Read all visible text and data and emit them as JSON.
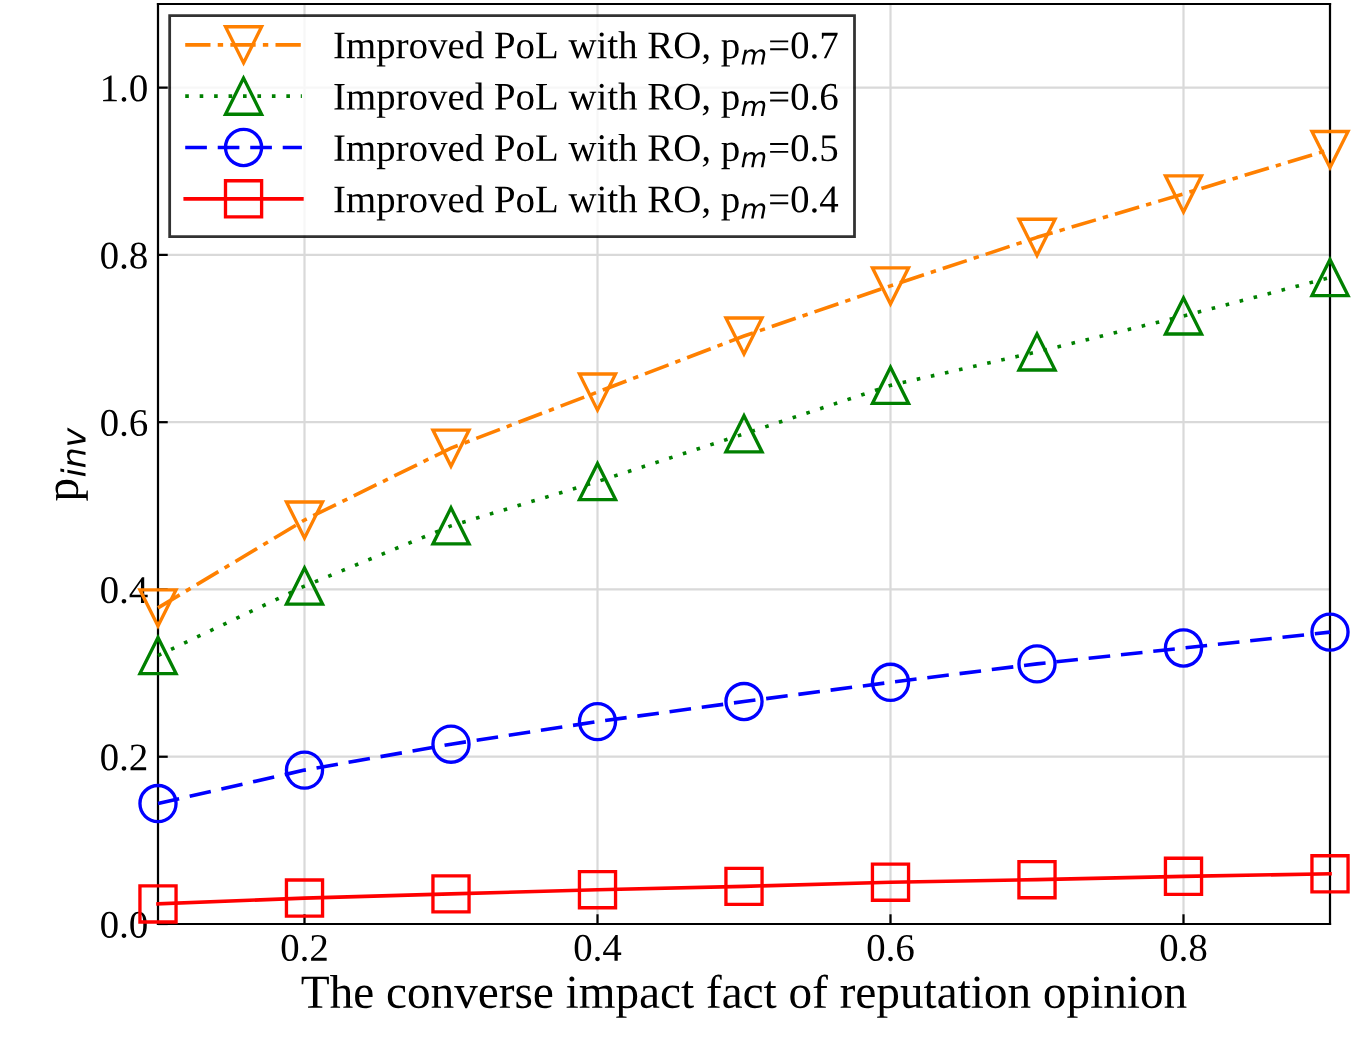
{
  "chart_data": {
    "type": "line",
    "xlabel": "The converse impact fact of reputation opinion",
    "ylabel": "p$_{inv}$",
    "x": [
      0.1,
      0.2,
      0.3,
      0.4,
      0.5,
      0.6,
      0.7,
      0.8,
      0.9
    ],
    "xlim": [
      0.1,
      0.9
    ],
    "xticks": [
      0.2,
      0.4,
      0.6,
      0.8
    ],
    "ylim": [
      0,
      1.1
    ],
    "yticks": [
      {
        "value": 0,
        "label": "0.0"
      },
      0.2,
      0.4,
      0.6,
      0.8,
      {
        "value": 1,
        "label": "1.0"
      }
    ],
    "grid": true,
    "legend": "top left",
    "series": [
      {
        "name": "Improved PoL with RO, p$_{m}$=0.7",
        "color": "#ff8000",
        "marker": "triangle_down",
        "line_style": "dashdot",
        "values": [
          0.378,
          0.483,
          0.569,
          0.636,
          0.703,
          0.763,
          0.821,
          0.873,
          0.926
        ]
      },
      {
        "name": "Improved PoL with RO, p$_{m}$=0.6",
        "color": "#008000",
        "marker": "triangle",
        "line_style": "dotted",
        "values": [
          0.321,
          0.404,
          0.476,
          0.529,
          0.586,
          0.644,
          0.684,
          0.727,
          0.773
        ]
      },
      {
        "name": "Improved PoL with RO, p$_{m}$=0.5",
        "color": "#0000ff",
        "marker": "circle",
        "line_style": "dashed",
        "values": [
          0.144,
          0.184,
          0.215,
          0.242,
          0.266,
          0.289,
          0.311,
          0.33,
          0.349
        ]
      },
      {
        "name": "Improved PoL with RO, p$_{m}$=0.4",
        "color": "#ff0000",
        "marker": "square",
        "line_style": "solid",
        "values": [
          0.024,
          0.031,
          0.036,
          0.041,
          0.045,
          0.05,
          0.053,
          0.057,
          0.06
        ]
      }
    ]
  }
}
